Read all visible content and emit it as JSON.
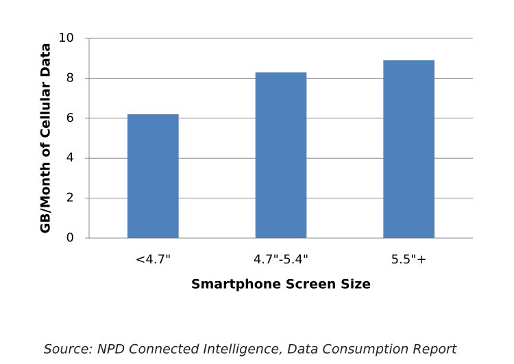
{
  "chart_data": {
    "type": "bar",
    "categories": [
      "<4.7\"",
      "4.7\"-5.4\"",
      "5.5\"+"
    ],
    "values": [
      6.2,
      8.3,
      8.9
    ],
    "color": "#4f81bd",
    "ylim": [
      0,
      10
    ],
    "yticks": [
      0,
      2,
      4,
      6,
      8,
      10
    ],
    "grid": true,
    "y_label": "GB/Month of Cellular Data",
    "x_label": "Smartphone Screen Size",
    "source": "Source: NPD Connected Intelligence, Data Consumption Report"
  }
}
